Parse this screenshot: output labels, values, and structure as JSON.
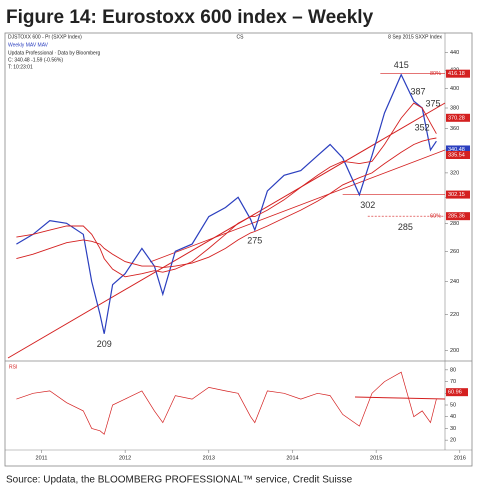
{
  "chart_data": {
    "type": "line",
    "title": "Figure 14: Eurostoxx 600 index – Weekly",
    "header_left": "DJSTOXX 600 - Pr (SXXP Index)",
    "header_center": "CS",
    "header_right": "8 Sep 2015 SXXP Index",
    "legend_line": "Weekly MAV MAV",
    "info_lines": [
      "Updata Professional · Data by Bloomberg",
      "C: 340.48 -1.59 (-0.56%)",
      "T: 10:23:01"
    ],
    "source": "Source: Updata, the BLOOMBERG PROFESSIONAL™ service, Credit Suisse",
    "log_scale": true,
    "x": [
      2010.7,
      2010.9,
      2011.1,
      2011.3,
      2011.5,
      2011.6,
      2011.7,
      2011.75,
      2011.85,
      2012.0,
      2012.2,
      2012.35,
      2012.45,
      2012.6,
      2012.8,
      2013.0,
      2013.2,
      2013.35,
      2013.5,
      2013.55,
      2013.7,
      2013.9,
      2014.1,
      2014.3,
      2014.45,
      2014.6,
      2014.8,
      2014.95,
      2015.1,
      2015.3,
      2015.45,
      2015.55,
      2015.65,
      2015.72
    ],
    "xlim": [
      2010.6,
      2016.05
    ],
    "xticks": [
      2011,
      2012,
      2013,
      2014,
      2015,
      2016
    ],
    "ylim": [
      196,
      455
    ],
    "yticks": [
      200,
      220,
      240,
      260,
      280,
      300,
      320,
      340,
      360,
      380,
      400,
      420,
      440
    ],
    "series": [
      {
        "color": "#2b3fbf",
        "values": [
          265,
          272,
          282,
          280,
          272,
          240,
          220,
          209,
          238,
          245,
          262,
          250,
          232,
          260,
          265,
          285,
          292,
          300,
          283,
          275,
          305,
          318,
          322,
          335,
          345,
          333,
          302,
          335,
          375,
          415,
          387,
          380,
          340,
          348
        ]
      },
      {
        "color": "#d42020",
        "values": [
          270,
          272,
          275,
          278,
          278,
          272,
          262,
          255,
          248,
          243,
          245,
          247,
          246,
          248,
          253,
          262,
          272,
          280,
          285,
          285,
          290,
          298,
          308,
          318,
          325,
          330,
          328,
          330,
          345,
          370,
          385,
          380,
          365,
          355
        ]
      },
      {
        "color": "#d42020",
        "values": [
          255,
          258,
          262,
          266,
          268,
          267,
          265,
          262,
          258,
          253,
          250,
          250,
          249,
          250,
          252,
          256,
          262,
          268,
          273,
          274,
          278,
          284,
          290,
          297,
          303,
          310,
          316,
          320,
          328,
          338,
          345,
          348,
          350,
          351
        ]
      }
    ],
    "annotations": [
      {
        "text": "415",
        "x": 2015.3,
        "y": 415,
        "position": "above"
      },
      {
        "text": "387",
        "x": 2015.5,
        "y": 387,
        "position": "above"
      },
      {
        "text": "375",
        "x": 2015.68,
        "y": 375,
        "position": "above"
      },
      {
        "text": "352",
        "x": 2015.55,
        "y": 352,
        "position": "above"
      },
      {
        "text": "302",
        "x": 2014.9,
        "y": 302,
        "position": "below"
      },
      {
        "text": "285",
        "x": 2015.35,
        "y": 285,
        "position": "below"
      },
      {
        "text": "275",
        "x": 2013.55,
        "y": 275,
        "position": "below"
      },
      {
        "text": "209",
        "x": 2011.75,
        "y": 209,
        "position": "below"
      }
    ],
    "levels": [
      {
        "value": 416.18,
        "label": "416.18",
        "color": "#d42020",
        "from": 2015.05,
        "note": "80%"
      },
      {
        "value": 302.15,
        "label": "302.15",
        "color": "#d42020",
        "from": 2014.6
      },
      {
        "value": 285.36,
        "label": "285.36",
        "color": "#d42020",
        "from": 2014.9,
        "note": "60%"
      }
    ],
    "price_labels": [
      {
        "value": 370.28,
        "label": "370.28",
        "color": "#d42020"
      },
      {
        "value": 340.48,
        "label": "340.48",
        "color": "#2b3fbf"
      },
      {
        "value": 335.54,
        "label": "335.54",
        "color": "#d42020"
      }
    ],
    "rsi": {
      "label": "RSI",
      "color": "#d42020",
      "values": [
        55,
        60,
        62,
        52,
        45,
        30,
        28,
        25,
        50,
        55,
        62,
        45,
        35,
        58,
        55,
        65,
        62,
        60,
        40,
        35,
        62,
        60,
        55,
        60,
        58,
        42,
        32,
        60,
        70,
        78,
        40,
        45,
        35,
        55
      ],
      "ylim": [
        15,
        85
      ],
      "yticks": [
        20,
        30,
        40,
        50,
        60,
        70,
        80
      ],
      "last": {
        "value": 60.96,
        "label": "60.96"
      }
    }
  }
}
